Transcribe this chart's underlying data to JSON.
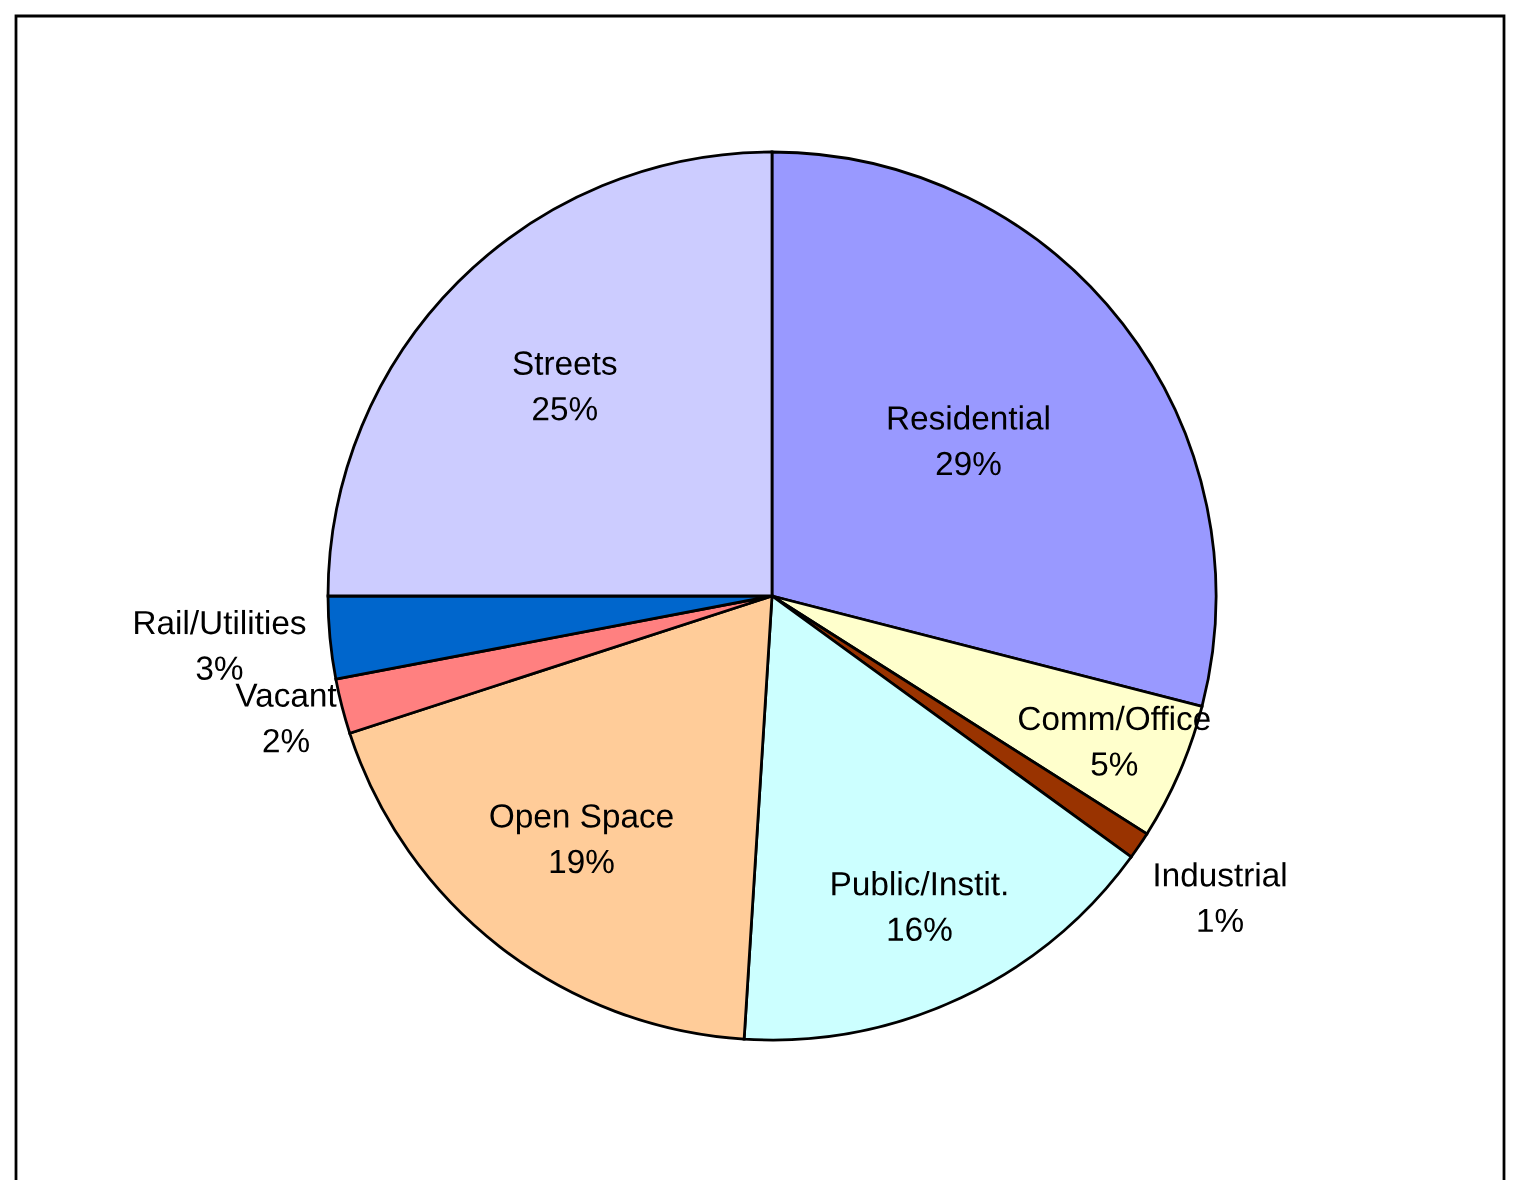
{
  "chart_data": {
    "type": "pie",
    "categories": [
      "Residential",
      "Comm/Office",
      "Industrial",
      "Public/Instit.",
      "Open Space",
      "Vacant",
      "Rail/Utilities",
      "Streets"
    ],
    "values": [
      29,
      5,
      1,
      16,
      19,
      2,
      3,
      25
    ],
    "colors": [
      "#9999ff",
      "#ffffcc",
      "#993300",
      "#ccffff",
      "#ffcc99",
      "#ff8080",
      "#0066cc",
      "#ccccff"
    ],
    "value_labels": [
      "29%",
      "5%",
      "1%",
      "16%",
      "19%",
      "2%",
      "3%",
      "25%"
    ],
    "legend": false
  }
}
